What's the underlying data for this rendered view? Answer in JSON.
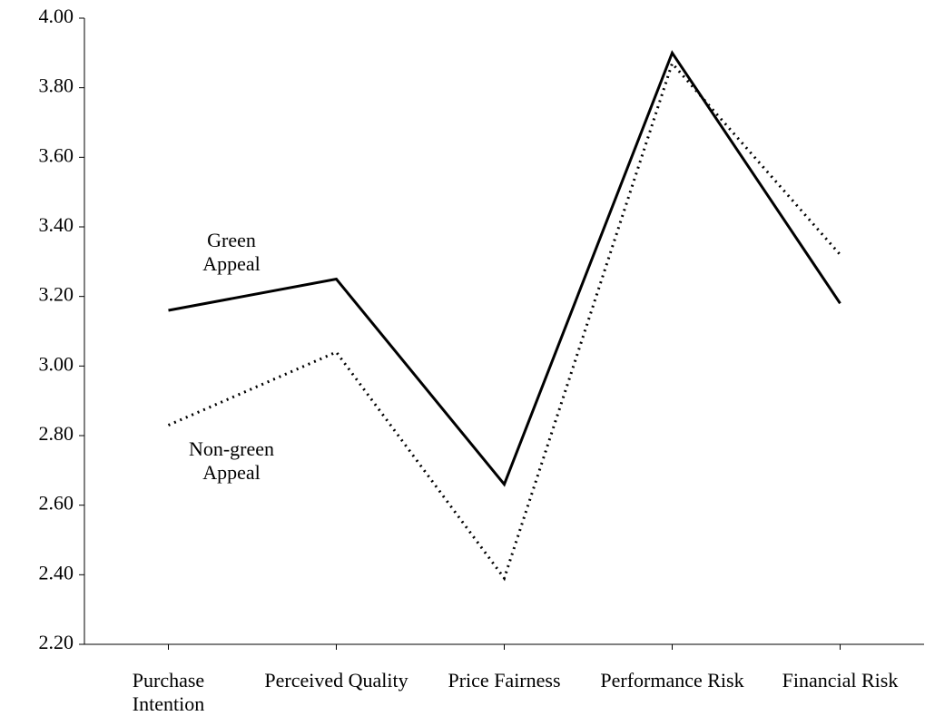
{
  "chart_data": {
    "type": "line",
    "categories": [
      "Purchase Intention",
      "Perceived Quality",
      "Price Fairness",
      "Performance Risk",
      "Financial Risk"
    ],
    "series": [
      {
        "name": "Green Appeal",
        "color": "#000000",
        "style": "solid",
        "values": [
          3.16,
          3.25,
          2.66,
          3.9,
          3.18
        ]
      },
      {
        "name": "Non-green Appeal",
        "color": "#000000",
        "style": "dotted",
        "values": [
          2.83,
          3.04,
          2.39,
          3.87,
          3.32
        ]
      }
    ],
    "ylim": [
      2.2,
      4.0
    ],
    "yticks": [
      {
        "value": 2.2,
        "label": "2.20"
      },
      {
        "value": 2.4,
        "label": "2.40"
      },
      {
        "value": 2.6,
        "label": "2.60"
      },
      {
        "value": 2.8,
        "label": "2.80"
      },
      {
        "value": 3.0,
        "label": "3.00"
      },
      {
        "value": 3.2,
        "label": "3.20"
      },
      {
        "value": 3.4,
        "label": "3.40"
      },
      {
        "value": 3.6,
        "label": "3.60"
      },
      {
        "value": 3.8,
        "label": "3.80"
      },
      {
        "value": 4.0,
        "label": "4.00"
      }
    ],
    "grid": false
  }
}
